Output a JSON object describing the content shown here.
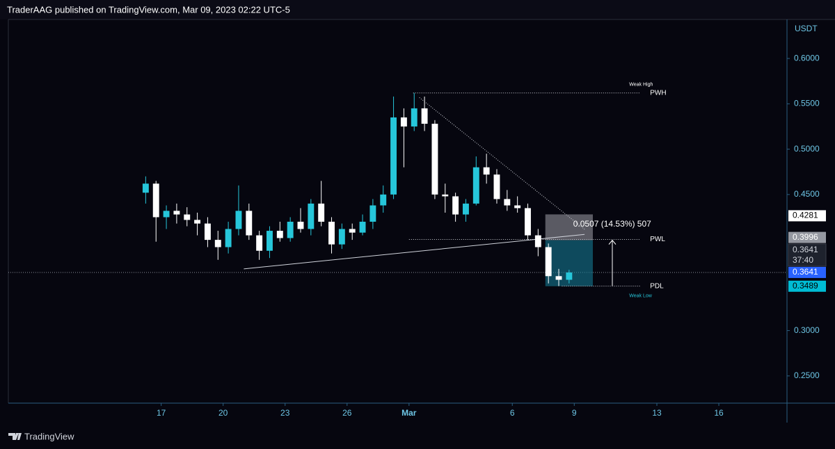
{
  "header": "TraderAAG published on TradingView.com, Mar 09, 2023 02:22 UTC-5",
  "footer": "TradingView",
  "chart_data": {
    "type": "candlestick",
    "currency": "USDT",
    "x": [
      16.25,
      16.75,
      17.25,
      17.75,
      18.25,
      18.75,
      19.25,
      19.75,
      20.25,
      20.75,
      21.25,
      21.75,
      22.25,
      22.75,
      23.25,
      23.75,
      24.25,
      24.75,
      25.25,
      25.75,
      26.25,
      26.75,
      27.25,
      27.75,
      28.25,
      28.75,
      29.25,
      29.75,
      30.25,
      30.75,
      31.25,
      31.75,
      32.25,
      32.75,
      33.25,
      33.75,
      34.25,
      34.75,
      35.25,
      35.75,
      36.25,
      36.75
    ],
    "open": [
      0.452,
      0.462,
      0.425,
      0.432,
      0.428,
      0.422,
      0.418,
      0.4,
      0.392,
      0.412,
      0.432,
      0.405,
      0.388,
      0.41,
      0.402,
      0.42,
      0.412,
      0.44,
      0.42,
      0.395,
      0.412,
      0.408,
      0.42,
      0.438,
      0.45,
      0.535,
      0.525,
      0.545,
      0.528,
      0.45,
      0.448,
      0.428,
      0.44,
      0.48,
      0.472,
      0.445,
      0.438,
      0.435,
      0.405,
      0.392,
      0.36,
      0.356
    ],
    "high": [
      0.47,
      0.465,
      0.438,
      0.44,
      0.436,
      0.43,
      0.425,
      0.41,
      0.42,
      0.46,
      0.44,
      0.41,
      0.415,
      0.42,
      0.425,
      0.435,
      0.445,
      0.465,
      0.425,
      0.418,
      0.418,
      0.428,
      0.445,
      0.46,
      0.558,
      0.545,
      0.562,
      0.558,
      0.532,
      0.462,
      0.452,
      0.445,
      0.492,
      0.495,
      0.478,
      0.455,
      0.448,
      0.44,
      0.412,
      0.396,
      0.368,
      0.367
    ],
    "low": [
      0.44,
      0.398,
      0.412,
      0.418,
      0.415,
      0.405,
      0.392,
      0.378,
      0.385,
      0.405,
      0.4,
      0.378,
      0.38,
      0.398,
      0.398,
      0.408,
      0.405,
      0.415,
      0.385,
      0.39,
      0.4,
      0.405,
      0.412,
      0.43,
      0.445,
      0.48,
      0.52,
      0.52,
      0.445,
      0.43,
      0.42,
      0.42,
      0.438,
      0.462,
      0.44,
      0.432,
      0.43,
      0.4,
      0.382,
      0.352,
      0.349,
      0.352
    ],
    "close": [
      0.462,
      0.425,
      0.432,
      0.428,
      0.422,
      0.418,
      0.4,
      0.392,
      0.412,
      0.432,
      0.405,
      0.388,
      0.41,
      0.402,
      0.42,
      0.412,
      0.44,
      0.42,
      0.395,
      0.412,
      0.408,
      0.42,
      0.438,
      0.45,
      0.535,
      0.525,
      0.545,
      0.528,
      0.45,
      0.448,
      0.428,
      0.44,
      0.48,
      0.472,
      0.445,
      0.438,
      0.435,
      0.405,
      0.392,
      0.36,
      0.356,
      0.364
    ],
    "up_color": "#26c6da",
    "down_color": "#ffffff",
    "xlim": [
      9.6,
      47.3
    ],
    "xticks": [
      17,
      20,
      23,
      26,
      {
        "value": 29,
        "label": "Mar"
      },
      {
        "value": 34,
        "label": "6"
      },
      {
        "value": 37,
        "label": "9"
      },
      {
        "value": 41,
        "label": "13"
      },
      {
        "value": 44,
        "label": "16"
      }
    ],
    "ylim": [
      0.22,
      0.643
    ],
    "yticks": [
      {
        "value": 0.6,
        "label": "0.6000"
      },
      {
        "value": 0.55,
        "label": "0.5500"
      },
      {
        "value": 0.5,
        "label": "0.5000"
      },
      {
        "value": 0.45,
        "label": "0.4500"
      },
      {
        "value": 0.3,
        "label": "0.3000"
      },
      {
        "value": 0.25,
        "label": "0.2500"
      }
    ],
    "levels": [
      {
        "label": "PWH",
        "value": 0.562,
        "note": "Weak High",
        "x_from": 29.2,
        "x_to": 40.2
      },
      {
        "label": "PWL",
        "value": 0.4005,
        "x_from": 29.0,
        "x_to": 40.2
      },
      {
        "label": "PDL",
        "value": 0.349,
        "note": "Weak Low",
        "x_from": 36.4,
        "x_to": 40.2
      }
    ],
    "trendlines": [
      [
        [
          29.5,
          0.557
        ],
        [
          37.5,
          0.4116
        ]
      ],
      [
        [
          21.0,
          0.368
        ],
        [
          37.5,
          0.406
        ]
      ]
    ],
    "measure": {
      "label": "0.0507 (14.53%) 507",
      "low": 0.3489,
      "mid": 0.3996,
      "high": 0.4281,
      "x_from": 35.6,
      "x_to": 37.9
    },
    "last_price": 0.3641,
    "price_labels": [
      {
        "value": 0.4281,
        "label": "0.4281",
        "style": "white"
      },
      {
        "value": 0.3996,
        "label": "0.3996",
        "style": "grey"
      },
      {
        "value": 0.3641,
        "label": "0.3641",
        "countdown": "37:40",
        "style": "dark"
      },
      {
        "value": 0.3641,
        "label": "0.3641",
        "style": "blue"
      },
      {
        "value": 0.3489,
        "label": "0.3489",
        "style": "cyan"
      }
    ]
  }
}
